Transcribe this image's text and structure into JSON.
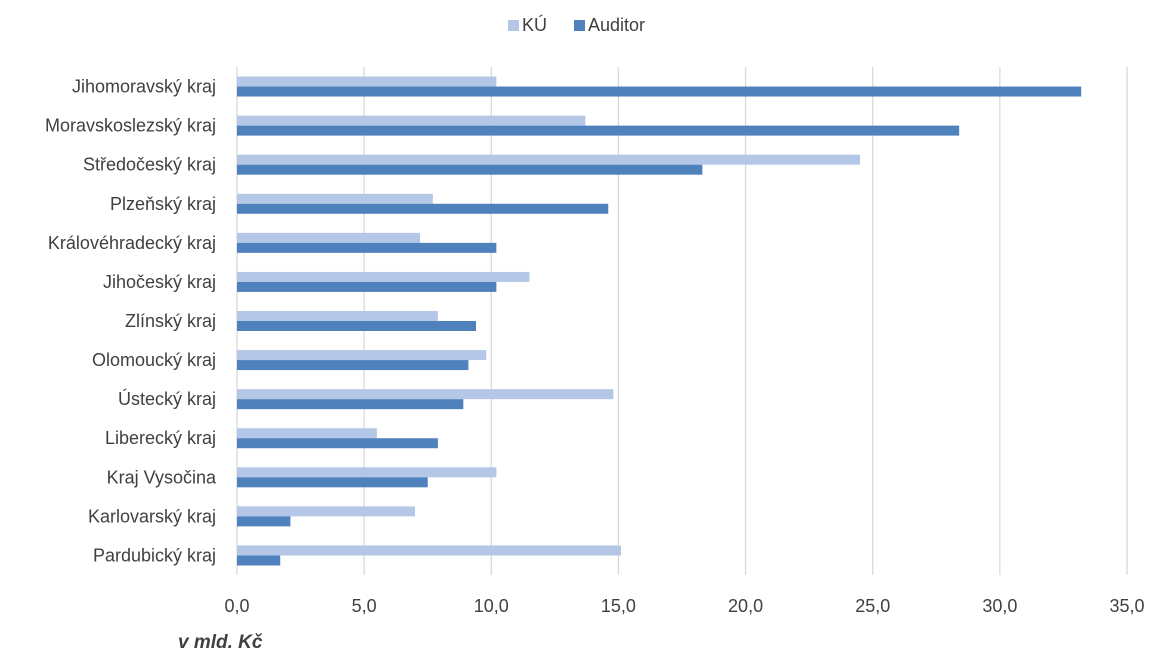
{
  "chart_data": {
    "type": "bar",
    "orientation": "horizontal",
    "categories": [
      "Jihomoravský kraj",
      "Moravskoslezský kraj",
      "Středočeský kraj",
      "Plzeňský kraj",
      "Královéhradecký kraj",
      "Jihočeský kraj",
      "Zlínský kraj",
      "Olomoucký kraj",
      "Ústecký kraj",
      "Liberecký kraj",
      "Kraj Vysočina",
      "Karlovarský kraj",
      "Pardubický kraj"
    ],
    "series": [
      {
        "name": "KÚ",
        "color": "#B4C7E7",
        "values": [
          10.2,
          13.7,
          24.5,
          7.7,
          7.2,
          11.5,
          7.9,
          9.8,
          14.8,
          5.5,
          10.2,
          7.0,
          15.1
        ]
      },
      {
        "name": "Auditor",
        "color": "#4F81BD",
        "values": [
          33.2,
          28.4,
          18.3,
          14.6,
          10.2,
          10.2,
          9.4,
          9.1,
          8.9,
          7.9,
          7.5,
          2.1,
          1.7
        ]
      }
    ],
    "xlim": [
      0,
      35
    ],
    "xticks": [
      "0,0",
      "5,0",
      "10,0",
      "15,0",
      "20,0",
      "25,0",
      "30,0",
      "35,0"
    ],
    "grid": "vertical",
    "legend_position": "top-center",
    "unit_label": "v mld. Kč"
  }
}
